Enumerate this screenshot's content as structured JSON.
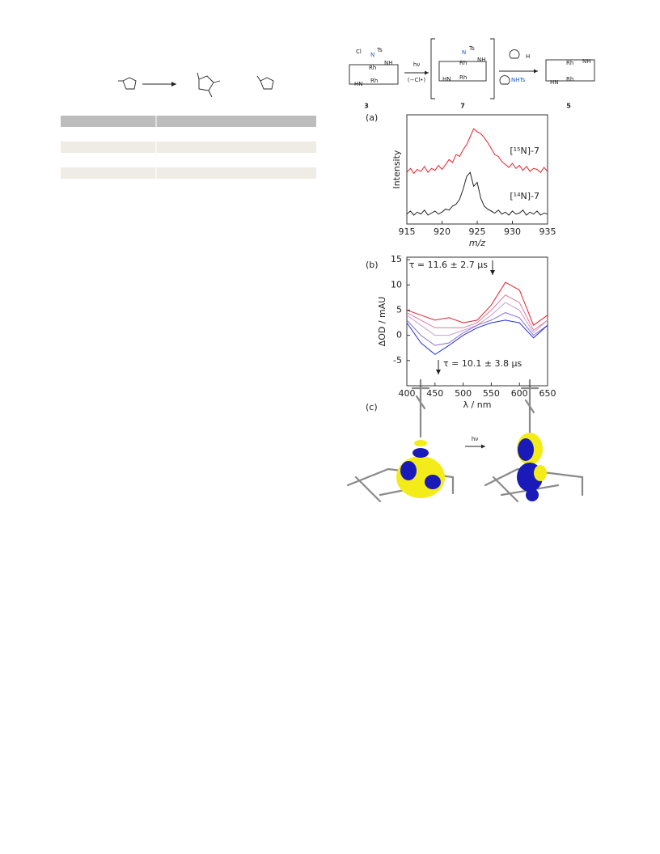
{
  "scheme": {
    "cmpd3": "3",
    "cmpd7": "7",
    "cmpd5": "5",
    "light": "hν",
    "loss": "(−Cl•)",
    "cl": "Cl",
    "n": "N",
    "ts": "Ts",
    "rh": "Rh",
    "nh": "NH",
    "hn": "HN",
    "o": "O",
    "h": "H",
    "nhts": "NHTs"
  },
  "panels": [
    "(a)",
    "(b)",
    "(c)"
  ],
  "orbital_arrow": "hν",
  "chart_data": [
    {
      "type": "line",
      "x_label": "m/z",
      "y_label": "Intensity",
      "x": [
        915,
        915.5,
        916,
        916.5,
        917,
        917.5,
        918,
        918.5,
        919,
        919.5,
        920,
        920.5,
        921,
        921.5,
        922,
        922.5,
        923,
        923.5,
        924,
        924.5,
        925,
        925.5,
        926,
        926.5,
        927,
        927.5,
        928,
        928.5,
        929,
        929.5,
        930,
        930.5,
        931,
        931.5,
        932,
        932.5,
        933,
        933.5,
        934,
        934.5,
        935
      ],
      "xlim": [
        915,
        935
      ],
      "xticks": [
        915,
        920,
        925,
        930,
        935
      ],
      "ylim": [
        0,
        11
      ],
      "series": [
        {
          "name": "[¹⁵N]-7",
          "color": "#e8202a",
          "values": [
            5.2,
            5.6,
            5.1,
            5.5,
            5.3,
            5.8,
            5.2,
            5.6,
            5.4,
            5.9,
            5.5,
            6.0,
            6.5,
            6.2,
            7.0,
            6.8,
            7.5,
            8.0,
            8.8,
            9.6,
            9.3,
            9.1,
            8.7,
            8.2,
            7.6,
            7.0,
            6.8,
            6.3,
            6.0,
            5.7,
            6.1,
            5.6,
            5.9,
            5.4,
            5.8,
            5.3,
            5.6,
            5.5,
            5.2,
            5.7,
            5.3
          ]
        },
        {
          "name": "[¹⁴N]-7",
          "color": "#222222",
          "values": [
            1.0,
            1.3,
            0.9,
            1.2,
            1.0,
            1.4,
            0.9,
            1.1,
            1.3,
            1.0,
            1.2,
            1.5,
            1.4,
            1.8,
            2.0,
            2.5,
            3.5,
            4.8,
            5.2,
            3.8,
            4.2,
            2.6,
            1.8,
            1.5,
            1.3,
            1.1,
            1.4,
            1.0,
            1.2,
            0.9,
            1.3,
            1.0,
            1.1,
            1.4,
            0.9,
            1.2,
            1.0,
            1.3,
            0.9,
            1.1,
            1.0
          ]
        }
      ]
    },
    {
      "type": "line",
      "x_label": "λ / nm",
      "y_label": "ΔOD / mAU",
      "x": [
        400,
        425,
        450,
        475,
        500,
        525,
        550,
        575,
        600,
        625,
        650
      ],
      "xlim": [
        400,
        650
      ],
      "xticks": [
        400,
        450,
        500,
        550,
        600,
        650
      ],
      "ylim": [
        -10,
        15.5
      ],
      "yticks": [
        -5,
        0,
        5,
        10,
        15
      ],
      "annotations": [
        "τ = 11.6 ± 2.7 μs",
        "τ = 10.1 ± 3.8 μs"
      ],
      "series": [
        {
          "color": "#e8202a",
          "values": [
            5,
            4,
            3,
            3.5,
            2.5,
            3,
            6,
            10.5,
            9,
            2,
            4
          ]
        },
        {
          "color": "#e07a9a",
          "values": [
            4.5,
            3,
            1.5,
            1.5,
            1.5,
            2.5,
            5,
            8,
            6.5,
            1,
            3
          ]
        },
        {
          "color": "#c7a0d0",
          "values": [
            4,
            2,
            0,
            0,
            1,
            2,
            4,
            6.5,
            5,
            0.5,
            3
          ]
        },
        {
          "color": "#8a70d0",
          "values": [
            3,
            0,
            -2,
            -1.5,
            0.5,
            2,
            3,
            4.5,
            3.5,
            0,
            2
          ]
        },
        {
          "color": "#2030d8",
          "values": [
            2.5,
            -1.5,
            -3.8,
            -2,
            0,
            1.5,
            2.5,
            3,
            2.5,
            -0.5,
            2
          ]
        }
      ]
    }
  ]
}
